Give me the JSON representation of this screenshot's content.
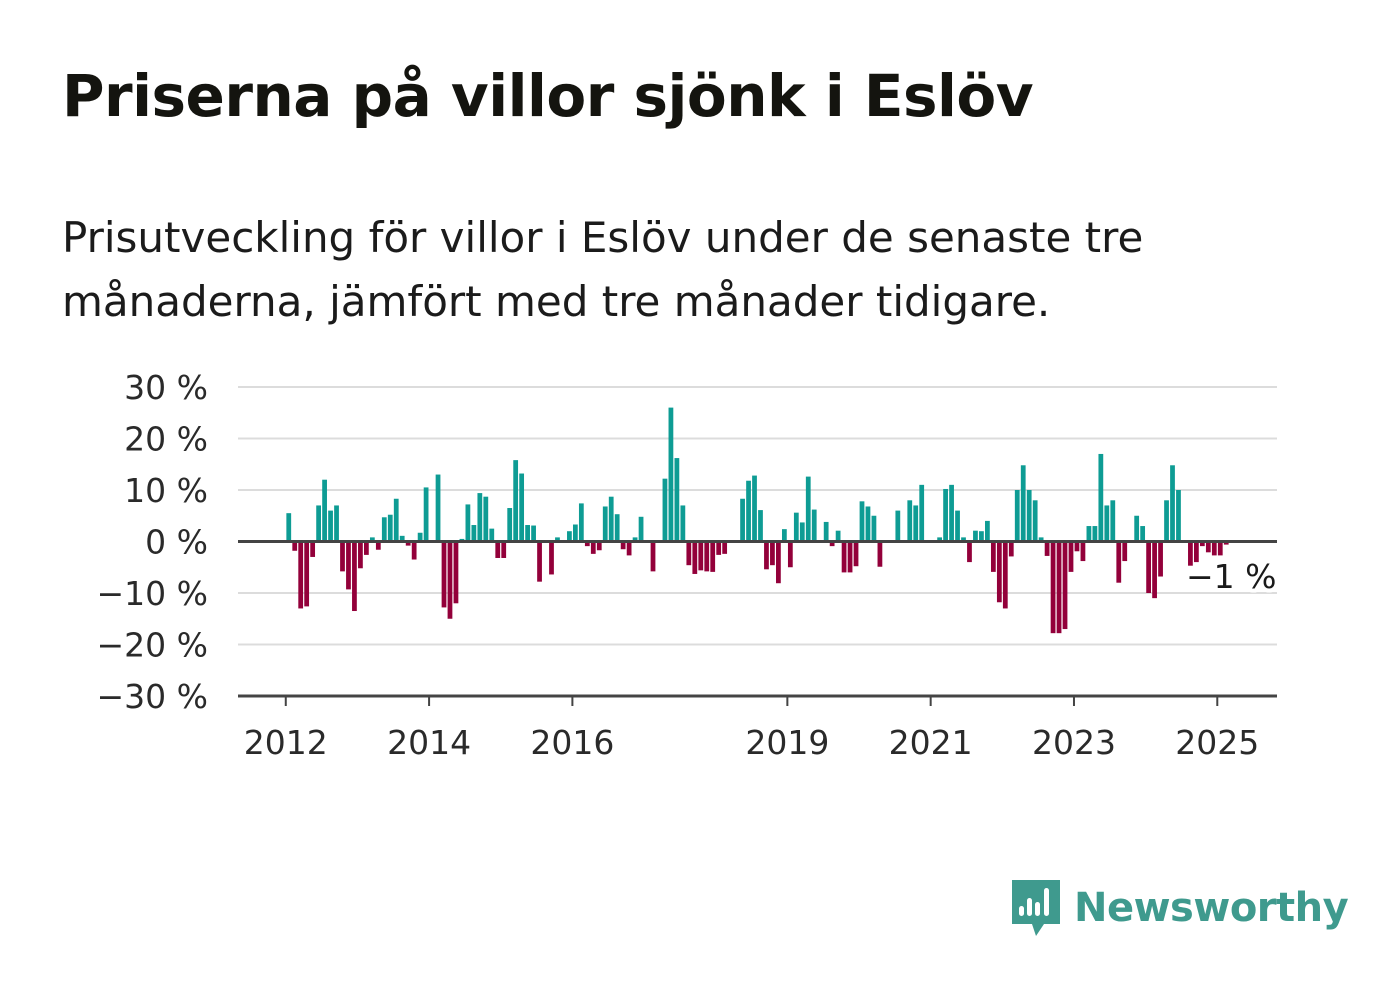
{
  "title": "Priserna på villor sjönk i Eslöv",
  "subtitle": "Prisutveckling för villor i Eslöv under de senaste tre månaderna, jämfört med tre månader tidigare.",
  "brand": {
    "name": "Newsworthy",
    "icon": "bar-chart-speech-bubble-icon"
  },
  "colors": {
    "positive": "#0e9c94",
    "negative": "#93003a",
    "grid": "#dcdcdc",
    "axis": "#444444",
    "brand": "#3f9a8e"
  },
  "chart_data": {
    "type": "bar",
    "title": "",
    "xlabel": "",
    "ylabel": "",
    "ylim": [
      -30,
      30
    ],
    "y_ticks": [
      30,
      20,
      10,
      0,
      -10,
      -20,
      -30
    ],
    "y_tick_labels": [
      "30 %",
      "20 %",
      "10 %",
      "0 %",
      "−10 %",
      "−20 %",
      "−30 %"
    ],
    "x_ticks": [
      "2012",
      "2014",
      "2016",
      "2019",
      "2021",
      "2023",
      "2025"
    ],
    "x_range": [
      "2011-05",
      "2025-11"
    ],
    "grid": true,
    "end_label": "−1 %",
    "series": [
      {
        "x": [
          "2012-01",
          "2012-02",
          "2012-03",
          "2012-04",
          "2012-05",
          "2012-06",
          "2012-07",
          "2012-08",
          "2012-09",
          "2012-10",
          "2012-11",
          "2012-12",
          "2013-01",
          "2013-02",
          "2013-03",
          "2013-04",
          "2013-05",
          "2013-06",
          "2013-07",
          "2013-08",
          "2013-09",
          "2013-10",
          "2013-11",
          "2013-12",
          "2014-01",
          "2014-02",
          "2014-03",
          "2014-04",
          "2014-05",
          "2014-06",
          "2014-07",
          "2014-08",
          "2014-09",
          "2014-10",
          "2014-11",
          "2014-12",
          "2015-01",
          "2015-02",
          "2015-03",
          "2015-04",
          "2015-05",
          "2015-06",
          "2015-07",
          "2015-08",
          "2015-09",
          "2015-10",
          "2015-11",
          "2015-12",
          "2016-01",
          "2016-02",
          "2016-03",
          "2016-04",
          "2016-05",
          "2016-06",
          "2016-07",
          "2016-08",
          "2016-09",
          "2016-10",
          "2016-11",
          "2016-12",
          "2017-01",
          "2017-02",
          "2017-03",
          "2017-04",
          "2017-05",
          "2017-06",
          "2017-07",
          "2017-08",
          "2017-09",
          "2017-10",
          "2017-11",
          "2017-12",
          "2018-01",
          "2018-02",
          "2018-03",
          "2018-04",
          "2018-05",
          "2018-06",
          "2018-07",
          "2018-08",
          "2018-09",
          "2018-10",
          "2018-11",
          "2018-12",
          "2019-01",
          "2019-02",
          "2019-03",
          "2019-04",
          "2019-05",
          "2019-06",
          "2019-07",
          "2019-08",
          "2019-09",
          "2019-10",
          "2019-11",
          "2019-12",
          "2020-01",
          "2020-02",
          "2020-03",
          "2020-04",
          "2020-05",
          "2020-06",
          "2020-07",
          "2020-08",
          "2020-09",
          "2020-10",
          "2020-11",
          "2020-12",
          "2021-01",
          "2021-02",
          "2021-03",
          "2021-04",
          "2021-05",
          "2021-06",
          "2021-07",
          "2021-08",
          "2021-09",
          "2021-10",
          "2021-11",
          "2021-12",
          "2022-01",
          "2022-02",
          "2022-03",
          "2022-04",
          "2022-05",
          "2022-06",
          "2022-07",
          "2022-08",
          "2022-09",
          "2022-10",
          "2022-11",
          "2022-12",
          "2023-01",
          "2023-02",
          "2023-03",
          "2023-04",
          "2023-05",
          "2023-06",
          "2023-07",
          "2023-08",
          "2023-09",
          "2023-10",
          "2023-11",
          "2023-12",
          "2024-01",
          "2024-02",
          "2024-03",
          "2024-04",
          "2024-05",
          "2024-06",
          "2024-07",
          "2024-08",
          "2024-09",
          "2024-10",
          "2024-11",
          "2024-12",
          "2025-01",
          "2025-02"
        ],
        "values": [
          5.5,
          -1.8,
          -13,
          -12.6,
          -3,
          7,
          12,
          6,
          7,
          -5.8,
          -9.3,
          -13.5,
          -5.2,
          -2.6,
          0.8,
          -1.6,
          4.7,
          5.2,
          8.3,
          1.1,
          -0.8,
          -3.5,
          1.7,
          10.5,
          0,
          13,
          -12.8,
          -15,
          -12,
          0.5,
          7.2,
          3.2,
          9.4,
          8.7,
          2.5,
          -3.2,
          -3.2,
          6.5,
          15.8,
          13.2,
          3.2,
          3.1,
          -7.8,
          0,
          -6.4,
          0.8,
          0,
          2,
          3.3,
          7.4,
          -0.9,
          -2.4,
          -1.7,
          6.8,
          8.7,
          5.3,
          -1.5,
          -2.7,
          0.8,
          4.8,
          0,
          -5.8,
          0,
          12.2,
          26,
          16.2,
          7,
          -4.6,
          -6.3,
          -5.6,
          -5.8,
          -5.9,
          -2.6,
          -2.4,
          0,
          0,
          8.3,
          11.8,
          12.8,
          6.1,
          -5.4,
          -4.6,
          -8.1,
          2.4,
          -5,
          5.6,
          3.7,
          12.6,
          6.2,
          0,
          3.8,
          -0.9,
          2.1,
          -6,
          -6,
          -4.8,
          7.8,
          6.8,
          5,
          -4.9,
          0,
          0,
          6,
          0,
          8,
          7,
          11,
          0,
          0,
          0.8,
          10.2,
          11,
          6,
          0.8,
          -4,
          2.1,
          2,
          4,
          -5.9,
          -11.8,
          -13,
          -2.9,
          10,
          14.8,
          10,
          8,
          0.8,
          -2.8,
          -17.8,
          -17.8,
          -17,
          -5.9,
          -1.9,
          -3.8,
          3,
          3,
          17,
          7,
          8,
          -8,
          -3.8,
          0,
          5,
          3,
          -10,
          -11,
          -6.8,
          8,
          14.8,
          10,
          0,
          -4.7,
          -4,
          -0.9,
          -2.1,
          -2.7,
          -2.7,
          -0.6
        ]
      }
    ]
  }
}
